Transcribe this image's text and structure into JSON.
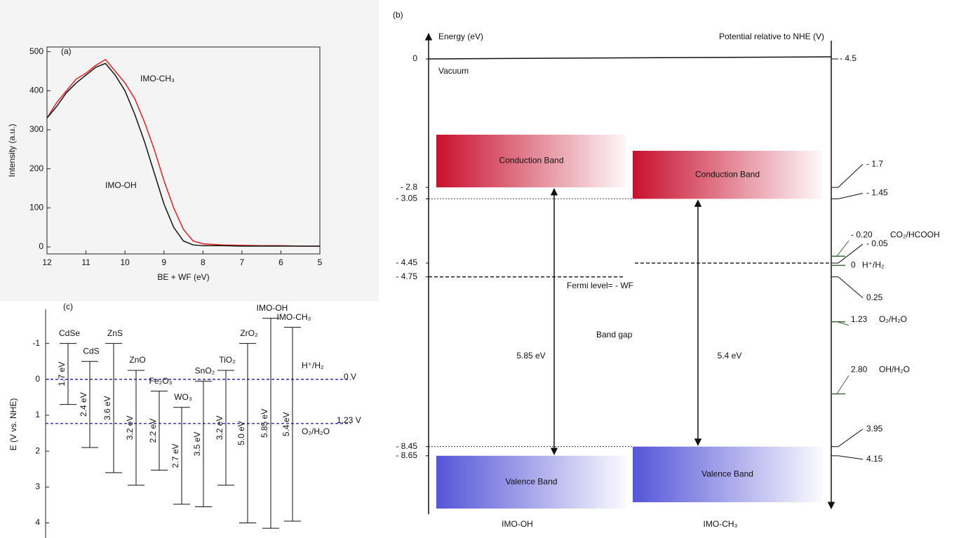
{
  "chart_data": [
    {
      "type": "line",
      "panel_label": "(a)",
      "xlabel": "BE + WF (eV)",
      "ylabel": "Intensity (a.u.)",
      "xlim": [
        12,
        5
      ],
      "ylim": [
        -18,
        512
      ],
      "xticks": [
        12,
        11,
        10,
        9,
        8,
        7,
        6,
        5
      ],
      "yticks": [
        0,
        100,
        200,
        300,
        400,
        500
      ],
      "x": [
        12,
        11.75,
        11.5,
        11.25,
        11,
        10.75,
        10.5,
        10.25,
        10,
        9.75,
        9.5,
        9.25,
        9,
        8.75,
        8.5,
        8.25,
        8,
        7.5,
        7,
        6.5,
        6,
        5.5,
        5
      ],
      "series": [
        {
          "name": "IMO-CH₃",
          "color": "#e0201c",
          "values": [
            330,
            370,
            400,
            430,
            445,
            465,
            480,
            450,
            420,
            380,
            320,
            250,
            170,
            100,
            45,
            15,
            8,
            5,
            4,
            3,
            3,
            2,
            2
          ]
        },
        {
          "name": "IMO-OH",
          "color": "#111111",
          "values": [
            330,
            360,
            395,
            420,
            440,
            460,
            470,
            440,
            400,
            340,
            270,
            190,
            110,
            50,
            15,
            5,
            3,
            3,
            2,
            2,
            2,
            2,
            2
          ]
        }
      ]
    },
    {
      "type": "band-diagram",
      "panel_label": "(b)",
      "ylabel": "Energy (eV)",
      "y2label": "Potential relative to NHE (V)",
      "ylim": [
        -9.8,
        0.55
      ],
      "y2lim": [
        5.3,
        -5.05
      ],
      "vacuum_label": "Vacuum",
      "yticks": [
        {
          "value": 0,
          "label": "0"
        },
        {
          "value": -2.8,
          "label": "- 2.8"
        },
        {
          "value": -3.05,
          "label": "- 3.05"
        },
        {
          "value": -4.45,
          "label": "- 4.45"
        },
        {
          "value": -4.75,
          "label": "- 4.75"
        },
        {
          "value": -8.45,
          "label": "- 8.45"
        },
        {
          "value": -8.65,
          "label": "- 8.65"
        }
      ],
      "y2ticks": [
        {
          "value": -4.5,
          "label": "- 4.5"
        },
        {
          "value": -1.7,
          "label": "- 1.7"
        },
        {
          "value": -1.45,
          "label": "- 1.45"
        },
        {
          "value": -0.05,
          "label": "- 0.05"
        },
        {
          "value": 0.25,
          "label": "0.25"
        },
        {
          "value": 3.95,
          "label": "3.95"
        },
        {
          "value": 4.15,
          "label": "4.15"
        }
      ],
      "redox": [
        {
          "name": "CO₂/HCOOH",
          "value": -0.2,
          "label": "- 0.20"
        },
        {
          "name": "H⁺/H₂",
          "value": 0,
          "label": "0"
        },
        {
          "name": "O₂/H₂O",
          "value": 1.23,
          "label": "1.23"
        },
        {
          "name": "OH/H₂O",
          "value": 2.8,
          "label": "2.80"
        }
      ],
      "redox_color": "#3d6b3d",
      "fermi_label": "Fermi level= - WF",
      "gap_title": "Band gap",
      "materials": [
        {
          "name": "IMO-OH",
          "cb": -2.8,
          "vb": -8.65,
          "fermi": -4.75,
          "gap_label": "5.85 eV",
          "cb_label": "Conduction Band",
          "vb_label": "Valence Band"
        },
        {
          "name": "IMO-CH₃",
          "cb": -3.05,
          "vb": -8.45,
          "fermi": -4.45,
          "gap_label": "5.4 eV",
          "cb_label": "Conduction Band",
          "vb_label": "Valence Band"
        }
      ]
    },
    {
      "type": "range",
      "panel_label": "(c)",
      "ylabel": "E (V vs. NHE)",
      "ylim": [
        4.42,
        -1.95
      ],
      "yticks": [
        -1,
        0,
        1,
        2,
        3,
        4
      ],
      "categories": [
        "CdSe",
        "CdS",
        "ZnS",
        "ZnO",
        "Fe₂O₃",
        "WO₃",
        "SnO₂",
        "TiO₂",
        "ZrO₂",
        "IMO-OH",
        "IMO-CH₃"
      ],
      "cb": [
        -1.0,
        -0.5,
        -1.0,
        -0.25,
        0.33,
        0.78,
        0.05,
        -0.25,
        -1.0,
        -1.7,
        -1.45
      ],
      "vb": [
        0.7,
        1.9,
        2.6,
        2.95,
        2.53,
        3.48,
        3.55,
        2.95,
        4.0,
        4.15,
        3.95
      ],
      "gap_labels": [
        "1.7 eV",
        "2.4 eV",
        "3.6 eV",
        "3.2 eV",
        "2.2 eV",
        "2.7 eV",
        "3.5 eV",
        "3.2 eV",
        "5.0 eV",
        "5.85 eV",
        "5.4 eV"
      ],
      "references": [
        {
          "name": "H⁺/H₂",
          "value": 0,
          "label": "0 V"
        },
        {
          "name": "O₂/H₂O",
          "value": 1.23,
          "label": "1.23 V"
        }
      ],
      "reference_color": "#1a1aa8"
    }
  ]
}
